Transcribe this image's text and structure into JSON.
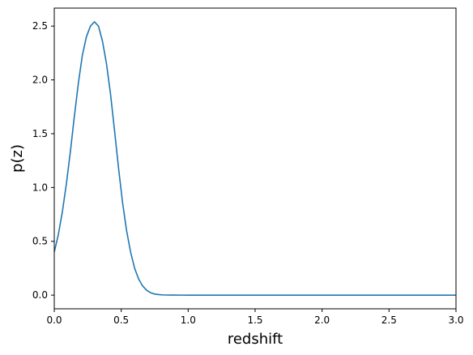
{
  "chart_data": {
    "type": "line",
    "title": "",
    "xlabel": "redshift",
    "ylabel": "p(z)",
    "xlim": [
      0.0,
      3.0
    ],
    "ylim": [
      -0.127,
      2.667
    ],
    "xticks": [
      0.0,
      0.5,
      1.0,
      1.5,
      2.0,
      2.5,
      3.0
    ],
    "xtick_labels": [
      "0.0",
      "0.5",
      "1.0",
      "1.5",
      "2.0",
      "2.5",
      "3.0"
    ],
    "yticks": [
      0.0,
      0.5,
      1.0,
      1.5,
      2.0,
      2.5
    ],
    "ytick_labels": [
      "0.0",
      "0.5",
      "1.0",
      "1.5",
      "2.0",
      "2.5"
    ],
    "grid": false,
    "line_color": "#1f77b4",
    "series": [
      {
        "x": [
          0.0,
          0.03,
          0.06,
          0.09,
          0.12,
          0.15,
          0.18,
          0.21,
          0.24,
          0.27,
          0.3,
          0.33,
          0.36,
          0.39,
          0.42,
          0.45,
          0.48,
          0.51,
          0.54,
          0.57,
          0.6,
          0.63,
          0.66,
          0.69,
          0.72,
          0.75,
          0.78,
          0.81,
          0.84,
          0.87,
          0.9,
          0.95,
          1.0,
          1.1,
          1.2,
          1.5,
          2.0,
          2.5,
          3.0
        ],
        "y": [
          0.4,
          0.56,
          0.77,
          1.03,
          1.33,
          1.66,
          1.97,
          2.23,
          2.4,
          2.5,
          2.54,
          2.5,
          2.36,
          2.15,
          1.87,
          1.53,
          1.18,
          0.86,
          0.6,
          0.4,
          0.25,
          0.15,
          0.085,
          0.045,
          0.022,
          0.01,
          0.005,
          0.002,
          0.001,
          0.0005,
          0.0002,
          0.0001,
          0.0,
          0.0,
          0.0,
          0.0,
          0.0,
          0.0,
          0.0
        ]
      }
    ]
  }
}
